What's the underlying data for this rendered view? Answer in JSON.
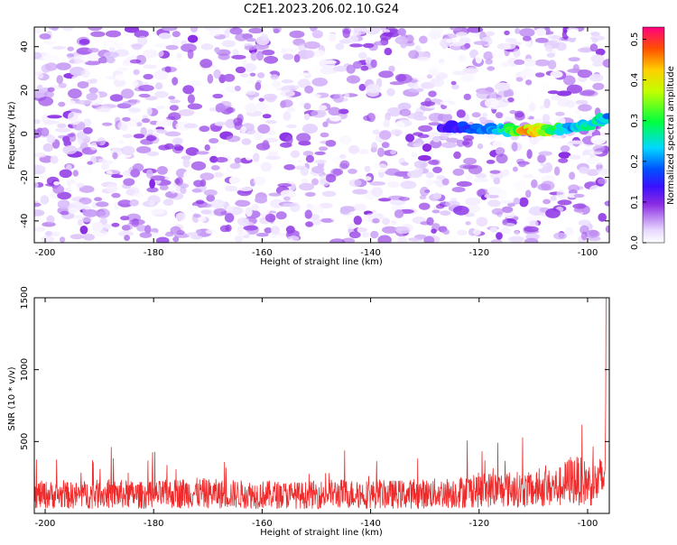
{
  "title": "C2E1.2023.206.02.10.G24",
  "chart_data": [
    {
      "type": "heatmap",
      "xlabel": "Height of straight line (km)",
      "ylabel": "Frequency (Hz)",
      "xlim": [
        -202,
        -96
      ],
      "ylim": [
        -50,
        49
      ],
      "xticks": [
        -200,
        -180,
        -160,
        -140,
        -120,
        -100
      ],
      "yticks": [
        -40,
        -20,
        0,
        20,
        40
      ],
      "colorbar": {
        "label": "Normalized spectral amplitude",
        "range": [
          0,
          0.53
        ],
        "ticks": [
          0.0,
          0.1,
          0.2,
          0.3,
          0.4,
          0.5
        ]
      },
      "ridge": {
        "description_x": [
          -127,
          -120,
          -115,
          -111,
          -108,
          -104,
          -100,
          -96
        ],
        "frequency_hz": [
          3,
          2.5,
          2,
          1.5,
          1.5,
          2.5,
          4,
          8
        ],
        "amplitude": [
          0.15,
          0.2,
          0.3,
          0.5,
          0.45,
          0.25,
          0.3,
          0.25
        ]
      },
      "background_amplitude_range": [
        0.0,
        0.1
      ]
    },
    {
      "type": "line",
      "xlabel": "Height of straight line (km)",
      "ylabel": "SNR (10 * v/v)",
      "xlim": [
        -202,
        -96
      ],
      "ylim": [
        0,
        1500
      ],
      "xticks": [
        -200,
        -180,
        -160,
        -140,
        -120,
        -100
      ],
      "yticks": [
        500,
        1000,
        1500
      ],
      "series": [
        {
          "color": "#ee2a2a",
          "x": [
            -202,
            -195,
            -188,
            -181,
            -174,
            -167,
            -160,
            -153,
            -146,
            -139,
            -132,
            -125,
            -120,
            -115,
            -110,
            -105,
            -103,
            -101,
            -99,
            -97,
            -96
          ],
          "y": [
            210,
            200,
            220,
            200,
            230,
            215,
            210,
            200,
            220,
            210,
            215,
            230,
            260,
            270,
            260,
            300,
            380,
            350,
            320,
            380,
            1500
          ]
        }
      ]
    }
  ]
}
